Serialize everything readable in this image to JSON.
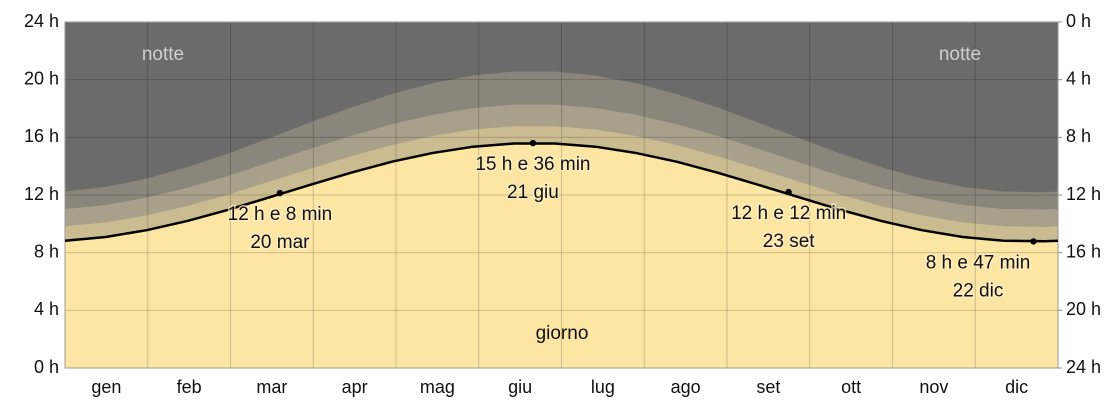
{
  "chart_data": {
    "type": "area",
    "categories": [
      "gen",
      "feb",
      "mar",
      "apr",
      "mag",
      "giu",
      "lug",
      "ago",
      "set",
      "ott",
      "nov",
      "dic"
    ],
    "x": [
      0,
      15,
      30,
      45,
      60,
      75,
      90,
      105,
      120,
      135,
      150,
      165,
      180,
      195,
      210,
      225,
      240,
      255,
      270,
      285,
      300,
      315,
      330,
      345,
      360,
      365
    ],
    "xlim": [
      0,
      365
    ],
    "night_color": "#6b6b6b",
    "series": [
      {
        "color": "#8a867c",
        "values": [
          12.24,
          12.56,
          13.14,
          13.93,
          14.88,
          15.94,
          17.02,
          18.06,
          18.99,
          19.75,
          20.29,
          20.56,
          20.56,
          20.29,
          19.75,
          18.99,
          18.06,
          17.02,
          15.94,
          14.88,
          13.93,
          13.14,
          12.56,
          12.24,
          12.19,
          12.24
        ]
      },
      {
        "color": "#a8a08a",
        "values": [
          11.03,
          11.31,
          11.82,
          12.5,
          13.33,
          14.25,
          15.19,
          16.09,
          16.9,
          17.56,
          18.03,
          18.27,
          18.27,
          18.03,
          17.56,
          16.9,
          16.09,
          15.19,
          14.25,
          13.33,
          12.5,
          11.82,
          11.31,
          11.03,
          10.99,
          11.03
        ]
      },
      {
        "color": "#cbbb90",
        "values": [
          9.83,
          10.1,
          10.58,
          11.24,
          12.03,
          12.92,
          13.81,
          14.68,
          15.46,
          16.09,
          16.54,
          16.77,
          16.77,
          16.54,
          16.09,
          15.46,
          14.68,
          13.81,
          12.92,
          12.03,
          11.24,
          10.58,
          10.1,
          9.83,
          9.79,
          9.83
        ]
      },
      {
        "color": "#fde5a3",
        "line_color": "#000000",
        "values": [
          8.83,
          9.09,
          9.56,
          10.2,
          10.97,
          11.83,
          12.7,
          13.54,
          14.3,
          14.91,
          15.35,
          15.57,
          15.57,
          15.35,
          14.91,
          14.3,
          13.54,
          12.7,
          11.83,
          10.97,
          10.2,
          9.56,
          9.09,
          8.83,
          8.79,
          8.83
        ]
      }
    ],
    "ylim": [
      0,
      24
    ],
    "yticks": [
      {
        "value": 0,
        "label": "0 h"
      },
      {
        "value": 4,
        "label": "4 h"
      },
      {
        "value": 8,
        "label": "8 h"
      },
      {
        "value": 12,
        "label": "12 h"
      },
      {
        "value": 16,
        "label": "16 h"
      },
      {
        "value": 20,
        "label": "20 h"
      },
      {
        "value": 24,
        "label": "24 h"
      }
    ],
    "y2lim": [
      24,
      0
    ],
    "y2ticks": [
      {
        "value": 0,
        "label": "0 h"
      },
      {
        "value": 4,
        "label": "4 h"
      },
      {
        "value": 8,
        "label": "8 h"
      },
      {
        "value": 12,
        "label": "12 h"
      },
      {
        "value": 16,
        "label": "16 h"
      },
      {
        "value": 20,
        "label": "20 h"
      },
      {
        "value": 24,
        "label": "24 h"
      }
    ],
    "grid": true,
    "night_label": "notte",
    "day_label": "giorno",
    "annotations": [
      {
        "x": 79,
        "y": 12.13,
        "lines": [
          "12 h e 8 min",
          "20 mar"
        ]
      },
      {
        "x": 172,
        "y": 15.6,
        "lines": [
          "15 h e 36 min",
          "21 giu"
        ]
      },
      {
        "x": 266,
        "y": 12.2,
        "lines": [
          "12 h e 12 min",
          "23 set"
        ]
      },
      {
        "x": 356,
        "y": 8.78,
        "lines": [
          "8 h e 47 min",
          "22 dic"
        ]
      }
    ]
  }
}
